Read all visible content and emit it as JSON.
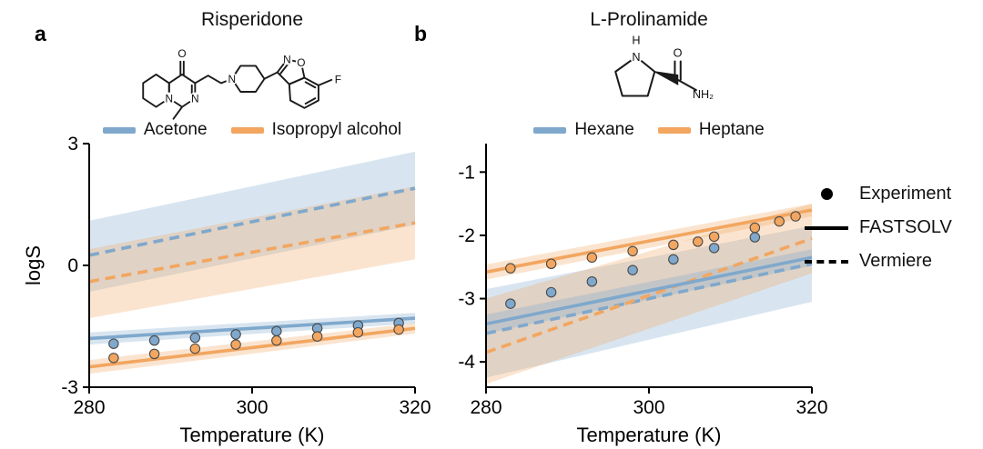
{
  "colors": {
    "blue": "#7fa8cc",
    "orange": "#f2a660",
    "band_opacity": 0.3,
    "axis": "#000000",
    "dot_edge": "#4a4a4a"
  },
  "panels": [
    {
      "label": "a",
      "title": "Risperidone",
      "solvent_legend": [
        {
          "label": "Acetone",
          "color": "blue"
        },
        {
          "label": "Isopropyl alcohol",
          "color": "orange"
        }
      ]
    },
    {
      "label": "b",
      "title": "L-Prolinamide",
      "solvent_legend": [
        {
          "label": "Hexane",
          "color": "blue"
        },
        {
          "label": "Heptane",
          "color": "orange"
        }
      ]
    }
  ],
  "legend": {
    "items": [
      {
        "symbol": "dot",
        "label": "Experiment"
      },
      {
        "symbol": "solid",
        "label": "FASTSOLV"
      },
      {
        "symbol": "dashed",
        "label": "Vermiere"
      }
    ]
  },
  "structures": {
    "risperidone": {
      "atoms": [
        "O",
        "N",
        "N",
        "N",
        "N",
        "O",
        "F"
      ]
    },
    "l_prolinamide": {
      "atoms": [
        "H",
        "N",
        "O",
        "NH₂"
      ]
    }
  },
  "chart_data": [
    {
      "type": "line",
      "panel": "a",
      "title": "Risperidone",
      "xlabel": "Temperature (K)",
      "ylabel": "logS",
      "xlim": [
        280,
        320
      ],
      "ylim": [
        -3,
        3
      ],
      "xticks": [
        280,
        300,
        320
      ],
      "yticks": [
        -3,
        0,
        3
      ],
      "grid": false,
      "series": [
        {
          "name": "Acetone Vermiere",
          "color": "blue",
          "style": "dashed",
          "x": [
            280,
            320
          ],
          "y": [
            0.25,
            1.9
          ],
          "band_lo": [
            -0.65,
            1.0
          ],
          "band_hi": [
            1.1,
            2.8
          ]
        },
        {
          "name": "Isopropyl alcohol Vermiere",
          "color": "orange",
          "style": "dashed",
          "x": [
            280,
            320
          ],
          "y": [
            -0.4,
            1.05
          ],
          "band_lo": [
            -1.3,
            0.15
          ],
          "band_hi": [
            0.4,
            1.95
          ]
        },
        {
          "name": "Acetone FASTSOLV",
          "color": "blue",
          "style": "solid",
          "x": [
            280,
            320
          ],
          "y": [
            -1.8,
            -1.3
          ],
          "band_lo": [
            -1.95,
            -1.43
          ],
          "band_hi": [
            -1.65,
            -1.17
          ]
        },
        {
          "name": "Isopropyl alcohol FASTSOLV",
          "color": "orange",
          "style": "solid",
          "x": [
            280,
            320
          ],
          "y": [
            -2.5,
            -1.55
          ],
          "band_lo": [
            -2.67,
            -1.68
          ],
          "band_hi": [
            -2.33,
            -1.42
          ]
        },
        {
          "name": "Acetone Experiment",
          "color": "blue",
          "style": "scatter",
          "x": [
            283,
            288,
            293,
            298,
            303,
            308,
            313,
            318
          ],
          "y": [
            -1.93,
            -1.85,
            -1.78,
            -1.7,
            -1.62,
            -1.55,
            -1.48,
            -1.42
          ]
        },
        {
          "name": "Isopropyl alcohol Experiment",
          "color": "orange",
          "style": "scatter",
          "x": [
            283,
            288,
            293,
            298,
            303,
            308,
            313,
            318
          ],
          "y": [
            -2.28,
            -2.18,
            -2.05,
            -1.95,
            -1.85,
            -1.75,
            -1.65,
            -1.58
          ]
        }
      ]
    },
    {
      "type": "line",
      "panel": "b",
      "title": "L-Prolinamide",
      "xlabel": "Temperature (K)",
      "ylabel": "",
      "xlim": [
        280,
        320
      ],
      "ylim": [
        -4.4,
        -0.55
      ],
      "xticks": [
        280,
        300,
        320
      ],
      "yticks": [
        -1,
        -2,
        -3,
        -4
      ],
      "grid": false,
      "series": [
        {
          "name": "Hexane Vermiere",
          "color": "blue",
          "style": "dashed",
          "x": [
            280,
            320
          ],
          "y": [
            -3.55,
            -2.45
          ],
          "band_lo": [
            -4.25,
            -3.05
          ],
          "band_hi": [
            -2.85,
            -1.85
          ]
        },
        {
          "name": "Heptane Vermiere",
          "color": "orange",
          "style": "dashed",
          "x": [
            280,
            320
          ],
          "y": [
            -3.85,
            -2.05
          ],
          "band_lo": [
            -4.35,
            -2.6
          ],
          "band_hi": [
            -3.0,
            -1.5
          ]
        },
        {
          "name": "Hexane FASTSOLV",
          "color": "blue",
          "style": "solid",
          "x": [
            280,
            320
          ],
          "y": [
            -3.4,
            -2.35
          ],
          "band_lo": [
            -3.55,
            -2.48
          ],
          "band_hi": [
            -3.25,
            -2.22
          ]
        },
        {
          "name": "Heptane FASTSOLV",
          "color": "orange",
          "style": "solid",
          "x": [
            280,
            320
          ],
          "y": [
            -2.58,
            -1.6
          ],
          "band_lo": [
            -2.7,
            -1.7
          ],
          "band_hi": [
            -2.46,
            -1.5
          ]
        },
        {
          "name": "Hexane Experiment",
          "color": "blue",
          "style": "scatter",
          "x": [
            283,
            288,
            293,
            298,
            303,
            308,
            313
          ],
          "y": [
            -3.08,
            -2.9,
            -2.73,
            -2.55,
            -2.38,
            -2.2,
            -2.03
          ]
        },
        {
          "name": "Heptane Experiment",
          "color": "orange",
          "style": "scatter",
          "x": [
            283,
            288,
            293,
            298,
            303,
            306,
            308,
            313,
            316,
            318
          ],
          "y": [
            -2.52,
            -2.45,
            -2.35,
            -2.25,
            -2.15,
            -2.1,
            -2.02,
            -1.88,
            -1.78,
            -1.7
          ]
        }
      ]
    }
  ]
}
